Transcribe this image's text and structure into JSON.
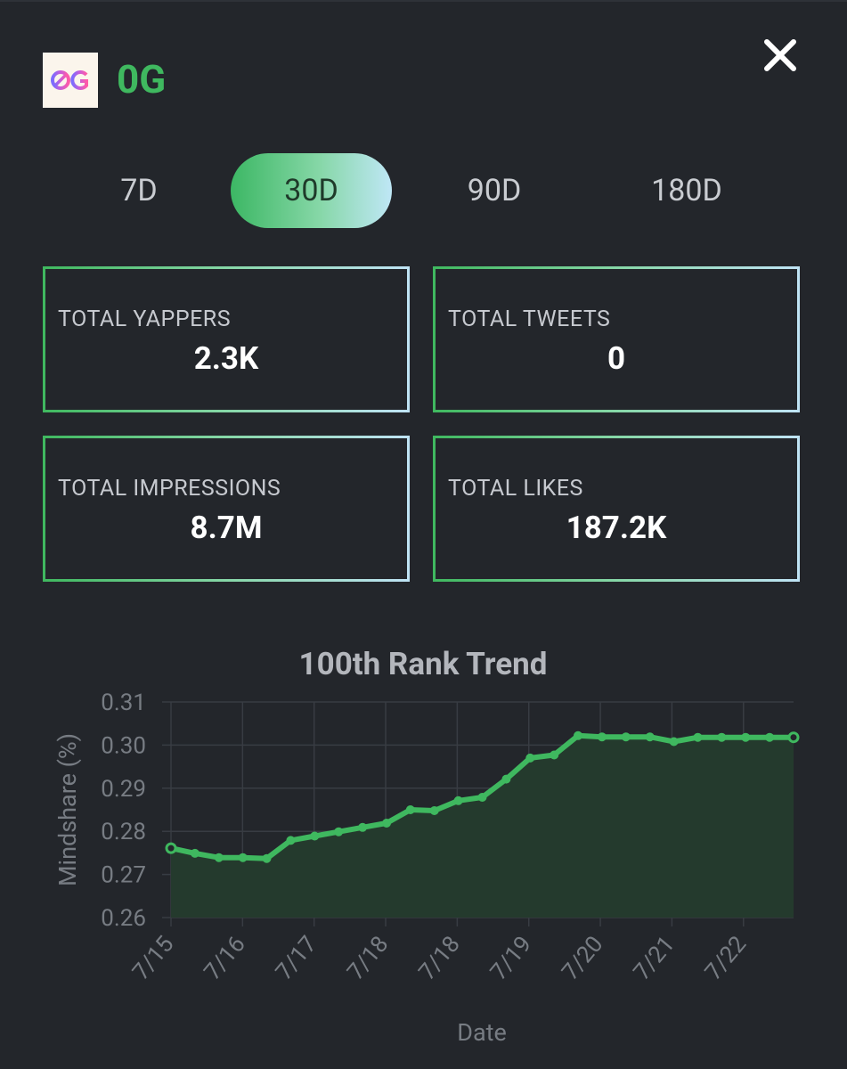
{
  "header": {
    "title": "0G",
    "logo_text": "0G",
    "close_icon": "close-icon"
  },
  "tabs": [
    {
      "label": "7D",
      "active": false
    },
    {
      "label": "30D",
      "active": true
    },
    {
      "label": "90D",
      "active": false
    },
    {
      "label": "180D",
      "active": false
    }
  ],
  "stats": [
    {
      "label": "TOTAL YAPPERS",
      "value": "2.3K"
    },
    {
      "label": "TOTAL TWEETS",
      "value": "0"
    },
    {
      "label": "TOTAL IMPRESSIONS",
      "value": "8.7M"
    },
    {
      "label": "TOTAL LIKES",
      "value": "187.2K"
    }
  ],
  "colors": {
    "accent": "#3fb85f",
    "background": "#23262b",
    "line": "#3fb85f",
    "area_fill": "#243a2d",
    "grid": "#383c43",
    "muted_text": "#777c83"
  },
  "chart_data": {
    "type": "area",
    "title": "100th Rank Trend",
    "xlabel": "Date",
    "ylabel": "Mindshare (%)",
    "ylim": [
      0.26,
      0.31
    ],
    "yticks": [
      0.31,
      0.3,
      0.29,
      0.28,
      0.27,
      0.26
    ],
    "x_tick_labels": [
      "7/15",
      "7/16",
      "7/17",
      "7/18",
      "7/18",
      "7/19",
      "7/20",
      "7/21",
      "7/22"
    ],
    "grid": true,
    "series": [
      {
        "values": [
          0.2761,
          0.2749,
          0.2739,
          0.2739,
          0.2737,
          0.2779,
          0.2789,
          0.2799,
          0.2809,
          0.2819,
          0.285,
          0.2848,
          0.2871,
          0.2879,
          0.2921,
          0.297,
          0.2977,
          0.3022,
          0.3019,
          0.3019,
          0.3019,
          0.3008,
          0.3018,
          0.3018,
          0.3018,
          0.3018,
          0.3018
        ]
      }
    ]
  }
}
